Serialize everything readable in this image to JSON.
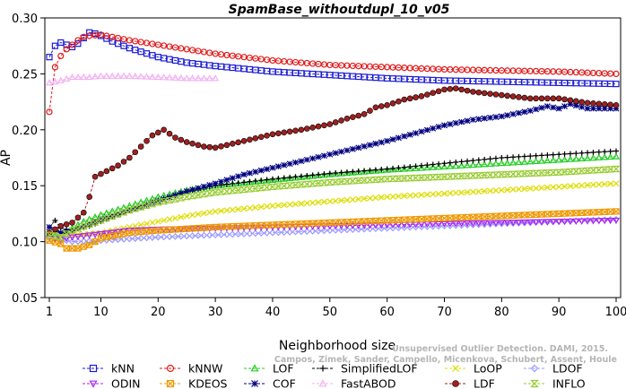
{
  "chart_data": {
    "type": "line",
    "title": "SpamBase_withoutdupl_10_v05",
    "xlabel": "Neighborhood size",
    "ylabel": "AP",
    "xlim": [
      1,
      100
    ],
    "ylim": [
      0.05,
      0.3
    ],
    "x_ticks": [
      1,
      10,
      20,
      30,
      40,
      50,
      60,
      70,
      80,
      90,
      100
    ],
    "y_ticks": [
      0.05,
      0.1,
      0.15,
      0.2,
      0.25,
      0.3
    ],
    "x_tick_labels": [
      "1",
      "10",
      "20",
      "30",
      "40",
      "50",
      "60",
      "70",
      "80",
      "90",
      "100"
    ],
    "y_tick_labels": [
      "0.05",
      "0.10",
      "0.15",
      "0.20",
      "0.25",
      "0.30"
    ],
    "grid": false,
    "legend_position": "bottom",
    "watermark": "Unsupervised Outlier Detection. DAMI, 2015. Campos, Zimek, Sander, Campello, Micenkova, Schubert, Assent, Houle",
    "series": [
      {
        "name": "kNN",
        "color": "#1a1ad4",
        "marker": "square",
        "points": [
          [
            1,
            0.265
          ],
          [
            2,
            0.275
          ],
          [
            3,
            0.278
          ],
          [
            4,
            0.276
          ],
          [
            5,
            0.274
          ],
          [
            6,
            0.277
          ],
          [
            7,
            0.282
          ],
          [
            8,
            0.287
          ],
          [
            9,
            0.286
          ],
          [
            10,
            0.284
          ],
          [
            12,
            0.279
          ],
          [
            15,
            0.273
          ],
          [
            20,
            0.265
          ],
          [
            25,
            0.26
          ],
          [
            30,
            0.257
          ],
          [
            40,
            0.252
          ],
          [
            50,
            0.249
          ],
          [
            60,
            0.246
          ],
          [
            70,
            0.244
          ],
          [
            80,
            0.243
          ],
          [
            90,
            0.242
          ],
          [
            100,
            0.241
          ]
        ]
      },
      {
        "name": "kNNW",
        "color": "#e01b1b",
        "marker": "circle",
        "points": [
          [
            1,
            0.216
          ],
          [
            2,
            0.256
          ],
          [
            3,
            0.266
          ],
          [
            4,
            0.272
          ],
          [
            5,
            0.276
          ],
          [
            6,
            0.28
          ],
          [
            7,
            0.283
          ],
          [
            8,
            0.284
          ],
          [
            10,
            0.285
          ],
          [
            12,
            0.283
          ],
          [
            15,
            0.28
          ],
          [
            20,
            0.276
          ],
          [
            25,
            0.272
          ],
          [
            30,
            0.268
          ],
          [
            40,
            0.262
          ],
          [
            50,
            0.258
          ],
          [
            60,
            0.256
          ],
          [
            70,
            0.254
          ],
          [
            80,
            0.253
          ],
          [
            90,
            0.252
          ],
          [
            100,
            0.25
          ]
        ]
      },
      {
        "name": "LOF",
        "color": "#22cc22",
        "marker": "triangle",
        "points": [
          [
            1,
            0.107
          ],
          [
            3,
            0.106
          ],
          [
            5,
            0.112
          ],
          [
            7,
            0.118
          ],
          [
            10,
            0.124
          ],
          [
            15,
            0.132
          ],
          [
            20,
            0.14
          ],
          [
            25,
            0.146
          ],
          [
            30,
            0.15
          ],
          [
            40,
            0.155
          ],
          [
            50,
            0.16
          ],
          [
            60,
            0.164
          ],
          [
            70,
            0.167
          ],
          [
            80,
            0.17
          ],
          [
            90,
            0.173
          ],
          [
            100,
            0.176
          ]
        ]
      },
      {
        "name": "SimplifiedLOF",
        "color": "#000000",
        "marker": "plus",
        "points": [
          [
            1,
            0.113
          ],
          [
            2,
            0.119
          ],
          [
            3,
            0.112
          ],
          [
            5,
            0.11
          ],
          [
            8,
            0.114
          ],
          [
            10,
            0.118
          ],
          [
            15,
            0.128
          ],
          [
            20,
            0.137
          ],
          [
            25,
            0.145
          ],
          [
            30,
            0.15
          ],
          [
            40,
            0.156
          ],
          [
            50,
            0.161
          ],
          [
            60,
            0.165
          ],
          [
            70,
            0.17
          ],
          [
            80,
            0.175
          ],
          [
            90,
            0.178
          ],
          [
            100,
            0.181
          ]
        ]
      },
      {
        "name": "LoOP",
        "color": "#dddd00",
        "marker": "x",
        "points": [
          [
            1,
            0.109
          ],
          [
            3,
            0.108
          ],
          [
            5,
            0.106
          ],
          [
            8,
            0.107
          ],
          [
            10,
            0.108
          ],
          [
            15,
            0.113
          ],
          [
            20,
            0.118
          ],
          [
            25,
            0.123
          ],
          [
            30,
            0.127
          ],
          [
            40,
            0.132
          ],
          [
            50,
            0.136
          ],
          [
            60,
            0.14
          ],
          [
            70,
            0.143
          ],
          [
            80,
            0.146
          ],
          [
            90,
            0.149
          ],
          [
            100,
            0.152
          ]
        ]
      },
      {
        "name": "LDOF",
        "color": "#9999ff",
        "marker": "diamond",
        "points": [
          [
            1,
            0.104
          ],
          [
            5,
            0.1
          ],
          [
            10,
            0.101
          ],
          [
            20,
            0.104
          ],
          [
            30,
            0.106
          ],
          [
            40,
            0.108
          ],
          [
            50,
            0.11
          ],
          [
            60,
            0.112
          ],
          [
            70,
            0.114
          ],
          [
            80,
            0.116
          ],
          [
            90,
            0.118
          ],
          [
            100,
            0.12
          ]
        ]
      },
      {
        "name": "ODIN",
        "color": "#aa22ee",
        "marker": "triangle-down",
        "points": [
          [
            1,
            0.103
          ],
          [
            3,
            0.102
          ],
          [
            5,
            0.104
          ],
          [
            10,
            0.107
          ],
          [
            15,
            0.11
          ],
          [
            20,
            0.111
          ],
          [
            30,
            0.112
          ],
          [
            40,
            0.113
          ],
          [
            50,
            0.114
          ],
          [
            60,
            0.115
          ],
          [
            70,
            0.116
          ],
          [
            80,
            0.117
          ],
          [
            90,
            0.118
          ],
          [
            100,
            0.119
          ]
        ]
      },
      {
        "name": "KDEOS",
        "color": "#ee9900",
        "marker": "square-cross",
        "points": [
          [
            1,
            0.101
          ],
          [
            3,
            0.098
          ],
          [
            4,
            0.094
          ],
          [
            6,
            0.094
          ],
          [
            8,
            0.097
          ],
          [
            10,
            0.103
          ],
          [
            15,
            0.108
          ],
          [
            20,
            0.11
          ],
          [
            30,
            0.113
          ],
          [
            40,
            0.115
          ],
          [
            50,
            0.117
          ],
          [
            60,
            0.119
          ],
          [
            70,
            0.121
          ],
          [
            80,
            0.123
          ],
          [
            90,
            0.125
          ],
          [
            100,
            0.127
          ]
        ]
      },
      {
        "name": "COF",
        "color": "#000080",
        "marker": "star",
        "points": [
          [
            1,
            0.113
          ],
          [
            3,
            0.108
          ],
          [
            5,
            0.11
          ],
          [
            10,
            0.12
          ],
          [
            15,
            0.128
          ],
          [
            20,
            0.136
          ],
          [
            25,
            0.145
          ],
          [
            30,
            0.152
          ],
          [
            35,
            0.16
          ],
          [
            40,
            0.166
          ],
          [
            45,
            0.172
          ],
          [
            50,
            0.178
          ],
          [
            55,
            0.184
          ],
          [
            60,
            0.19
          ],
          [
            65,
            0.197
          ],
          [
            70,
            0.204
          ],
          [
            75,
            0.209
          ],
          [
            80,
            0.212
          ],
          [
            85,
            0.217
          ],
          [
            88,
            0.221
          ],
          [
            90,
            0.219
          ],
          [
            92,
            0.223
          ],
          [
            95,
            0.219
          ],
          [
            100,
            0.219
          ]
        ]
      },
      {
        "name": "FastABOD",
        "color": "#f2b0f2",
        "marker": "triangle",
        "points": [
          [
            1,
            0.242
          ],
          [
            3,
            0.244
          ],
          [
            5,
            0.247
          ],
          [
            8,
            0.247
          ],
          [
            10,
            0.248
          ],
          [
            15,
            0.248
          ],
          [
            20,
            0.247
          ],
          [
            25,
            0.246
          ],
          [
            30,
            0.246
          ]
        ]
      },
      {
        "name": "LDF",
        "color": "#a02020",
        "marker": "circle-fill",
        "points": [
          [
            1,
            0.108
          ],
          [
            3,
            0.114
          ],
          [
            5,
            0.117
          ],
          [
            7,
            0.126
          ],
          [
            8,
            0.14
          ],
          [
            9,
            0.158
          ],
          [
            11,
            0.163
          ],
          [
            13,
            0.168
          ],
          [
            15,
            0.175
          ],
          [
            17,
            0.185
          ],
          [
            19,
            0.195
          ],
          [
            21,
            0.2
          ],
          [
            23,
            0.193
          ],
          [
            25,
            0.189
          ],
          [
            28,
            0.185
          ],
          [
            30,
            0.184
          ],
          [
            35,
            0.19
          ],
          [
            40,
            0.196
          ],
          [
            45,
            0.2
          ],
          [
            50,
            0.205
          ],
          [
            53,
            0.21
          ],
          [
            56,
            0.214
          ],
          [
            58,
            0.22
          ],
          [
            60,
            0.222
          ],
          [
            63,
            0.227
          ],
          [
            66,
            0.23
          ],
          [
            70,
            0.236
          ],
          [
            72,
            0.237
          ],
          [
            75,
            0.234
          ],
          [
            80,
            0.231
          ],
          [
            85,
            0.228
          ],
          [
            90,
            0.228
          ],
          [
            95,
            0.224
          ],
          [
            100,
            0.222
          ]
        ]
      },
      {
        "name": "INFLO",
        "color": "#99cc33",
        "marker": "hourglass",
        "points": [
          [
            1,
            0.106
          ],
          [
            3,
            0.104
          ],
          [
            5,
            0.11
          ],
          [
            10,
            0.119
          ],
          [
            15,
            0.128
          ],
          [
            20,
            0.135
          ],
          [
            25,
            0.14
          ],
          [
            30,
            0.144
          ],
          [
            40,
            0.149
          ],
          [
            50,
            0.153
          ],
          [
            60,
            0.156
          ],
          [
            70,
            0.158
          ],
          [
            80,
            0.16
          ],
          [
            90,
            0.162
          ],
          [
            100,
            0.165
          ]
        ]
      }
    ],
    "legend_rows": [
      [
        "kNN",
        "kNNW",
        "LOF",
        "SimplifiedLOF",
        "LoOP",
        "LDOF"
      ],
      [
        "ODIN",
        "KDEOS",
        "COF",
        "FastABOD",
        "LDF",
        "INFLO"
      ]
    ]
  }
}
